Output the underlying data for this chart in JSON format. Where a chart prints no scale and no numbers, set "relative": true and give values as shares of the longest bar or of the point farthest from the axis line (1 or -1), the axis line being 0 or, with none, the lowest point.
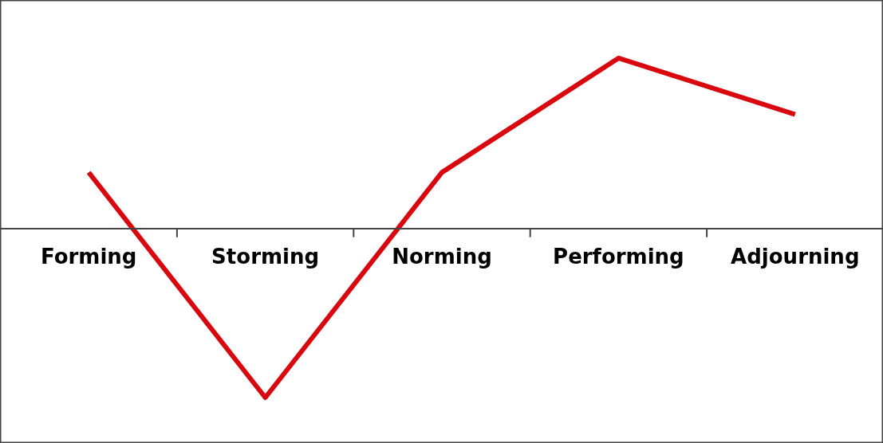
{
  "chart_data": {
    "type": "line",
    "relative": true,
    "categories": [
      "Forming",
      "Storming",
      "Norming",
      "Performing",
      "Adjourning"
    ],
    "series": [
      {
        "color": "#d9080f",
        "values": [
          0.33,
          -0.99,
          0.33,
          1,
          0.67
        ]
      }
    ],
    "line_style": "solid"
  }
}
